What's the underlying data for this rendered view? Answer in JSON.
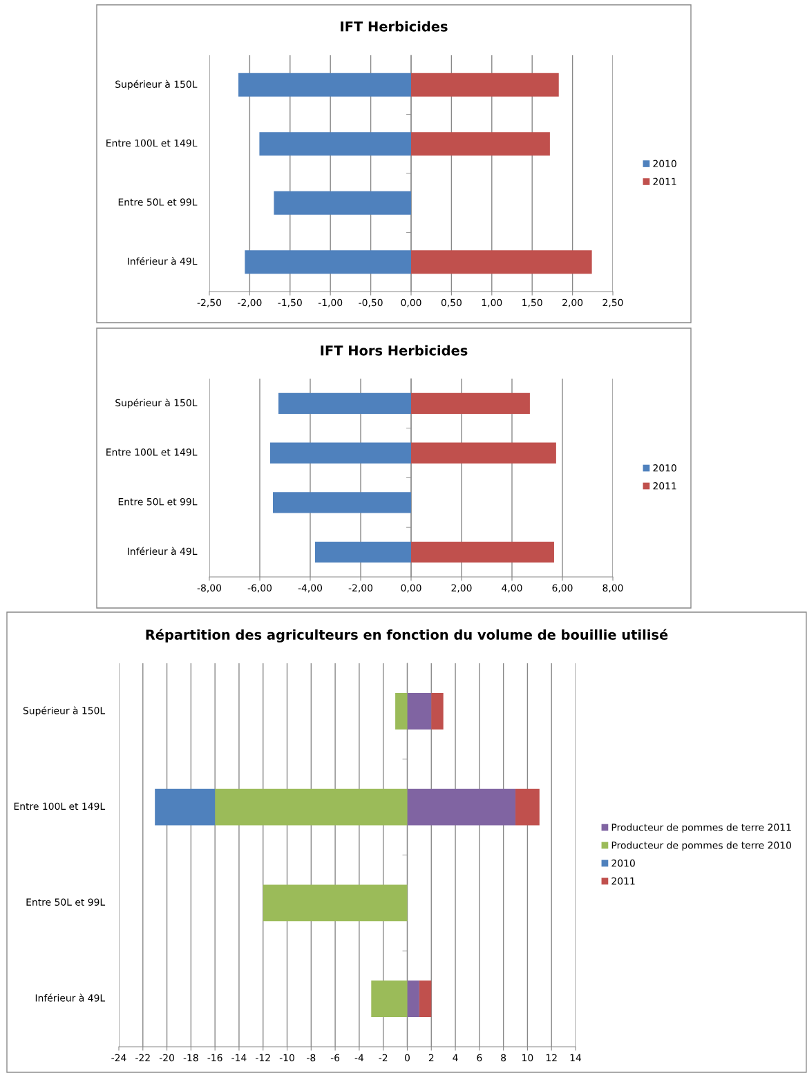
{
  "chart_data": [
    {
      "type": "bar",
      "orientation": "horizontal",
      "stacked": true,
      "title": "IFT Herbicides",
      "categories": [
        "Supérieur à 150L",
        "Entre 100L et 149L",
        "Entre 50L et 99L",
        "Inférieur à 49L"
      ],
      "series": [
        {
          "name": "2010",
          "color": "#4f81bd",
          "values": [
            -2.14,
            -1.88,
            -1.7,
            -2.06
          ]
        },
        {
          "name": "2011",
          "color": "#c0504d",
          "values": [
            1.83,
            1.72,
            null,
            2.24
          ]
        }
      ],
      "xlim": [
        -2.5,
        2.5
      ],
      "xticks": [
        {
          "value": -2.5,
          "label": "-2,50"
        },
        {
          "value": -2.0,
          "label": "-2,00"
        },
        {
          "value": -1.5,
          "label": "-1,50"
        },
        {
          "value": -1.0,
          "label": "-1,00"
        },
        {
          "value": -0.5,
          "label": "-0,50"
        },
        {
          "value": 0,
          "label": "0,00"
        },
        {
          "value": 0.5,
          "label": "0,50"
        },
        {
          "value": 1.0,
          "label": "1,00"
        },
        {
          "value": 1.5,
          "label": "1,50"
        },
        {
          "value": 2.0,
          "label": "2,00"
        },
        {
          "value": 2.5,
          "label": "2,50"
        }
      ],
      "grid": "x",
      "legend": "right"
    },
    {
      "type": "bar",
      "orientation": "horizontal",
      "stacked": true,
      "title": "IFT Hors Herbicides",
      "categories": [
        "Supérieur à 150L",
        "Entre 100L et 149L",
        "Entre 50L et 99L",
        "Inférieur à 49L"
      ],
      "series": [
        {
          "name": "2010",
          "color": "#4f81bd",
          "values": [
            -5.26,
            -5.59,
            -5.48,
            -3.81
          ]
        },
        {
          "name": "2011",
          "color": "#c0504d",
          "values": [
            4.71,
            5.75,
            null,
            5.67
          ]
        }
      ],
      "xlim": [
        -8,
        8
      ],
      "xticks": [
        {
          "value": -8,
          "label": "-8,00"
        },
        {
          "value": -6,
          "label": "-6,00"
        },
        {
          "value": -4,
          "label": "-4,00"
        },
        {
          "value": -2,
          "label": "-2,00"
        },
        {
          "value": 0,
          "label": "0,00"
        },
        {
          "value": 2,
          "label": "2,00"
        },
        {
          "value": 4,
          "label": "4,00"
        },
        {
          "value": 6,
          "label": "6,00"
        },
        {
          "value": 8,
          "label": "8,00"
        }
      ],
      "grid": "x",
      "legend": "right"
    },
    {
      "type": "bar",
      "orientation": "horizontal",
      "stacked": true,
      "title": "Répartition des agriculteurs en fonction du volume de bouillie utilisé",
      "categories": [
        "Supérieur à 150L",
        "Entre 100L et 149L",
        "Entre 50L et 99L",
        "Inférieur à 49L"
      ],
      "series": [
        {
          "name": "Producteur de pommes de terre 2011",
          "color": "#8064a2",
          "values": [
            2,
            9,
            null,
            1
          ]
        },
        {
          "name": "Producteur de pommes de terre 2010",
          "color": "#9bbb59",
          "values": [
            -1,
            -16,
            -12,
            -3
          ]
        },
        {
          "name": "2010",
          "color": "#4f81bd",
          "values": [
            null,
            -5,
            null,
            null
          ]
        },
        {
          "name": "2011",
          "color": "#c0504d",
          "values": [
            1,
            2,
            null,
            1
          ]
        }
      ],
      "xlim": [
        -24,
        14
      ],
      "xticks": [
        -24,
        -22,
        -20,
        -18,
        -16,
        -14,
        -12,
        -10,
        -8,
        -6,
        -4,
        -2,
        0,
        2,
        4,
        6,
        8,
        10,
        12,
        14
      ],
      "grid": "x",
      "legend": "right"
    }
  ]
}
